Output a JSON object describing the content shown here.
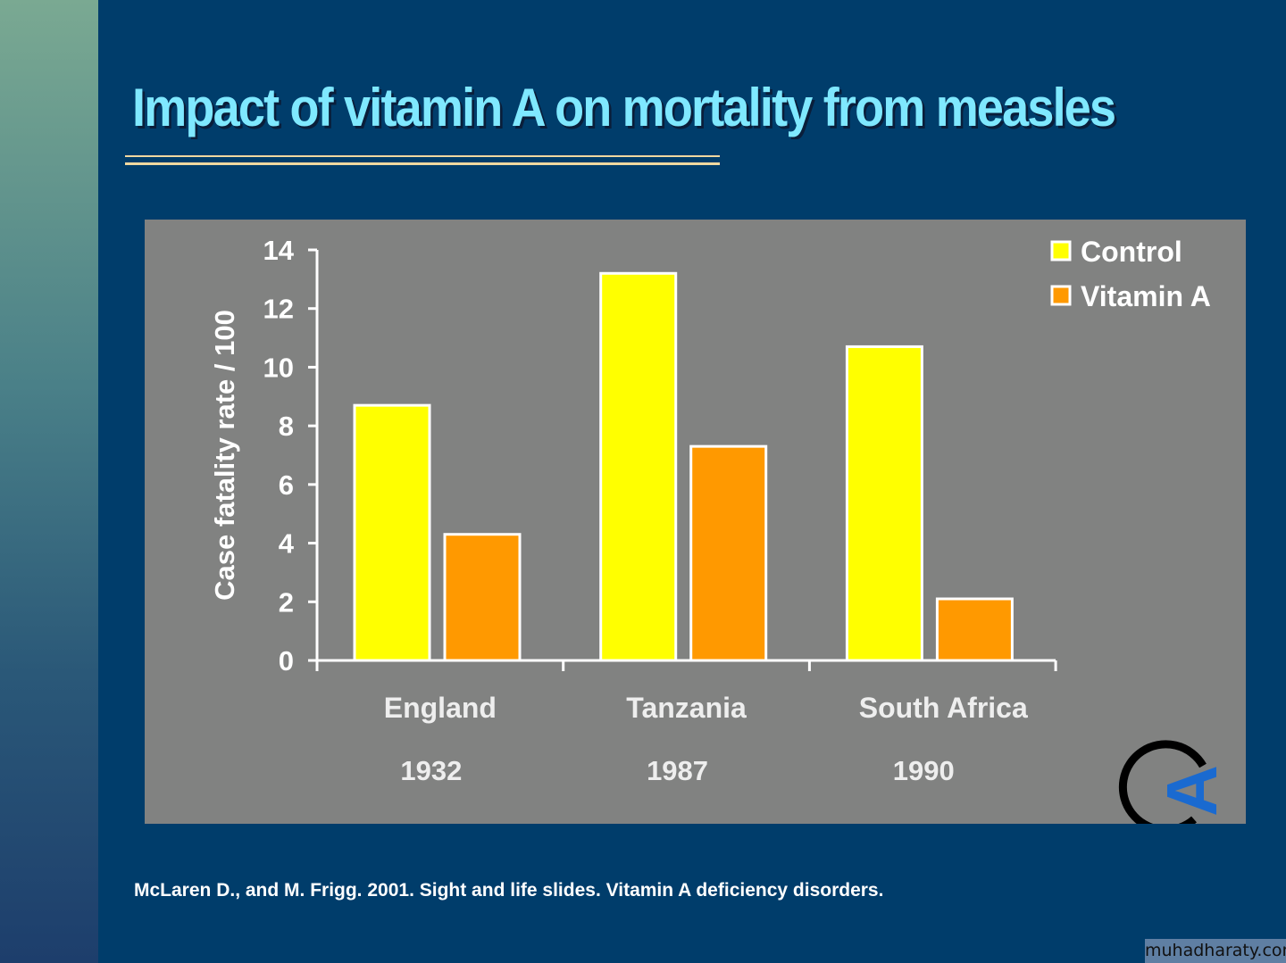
{
  "title": "Impact of vitamin A on mortality from measles",
  "citation": "McLaren D., and M. Frigg. 2001. Sight and life slides. Vitamin A deficiency disorders.",
  "watermark": "muhadharaty.com",
  "logo": "VA",
  "chart_data": {
    "type": "bar",
    "categories": [
      "England",
      "Tanzania",
      "South Africa"
    ],
    "sublabels": [
      "1932",
      "1987",
      "1990"
    ],
    "series": [
      {
        "name": "Control",
        "values": [
          8.7,
          13.2,
          10.7
        ],
        "color": "#ffff00"
      },
      {
        "name": "Vitamin A",
        "values": [
          4.3,
          7.3,
          2.1
        ],
        "color": "#ff9900"
      }
    ],
    "ylabel": "Case fatality rate / 100",
    "ylim": [
      0,
      14
    ],
    "yticks": [
      0,
      2,
      4,
      6,
      8,
      10,
      12,
      14
    ],
    "grid": false,
    "legend": "top-right"
  }
}
